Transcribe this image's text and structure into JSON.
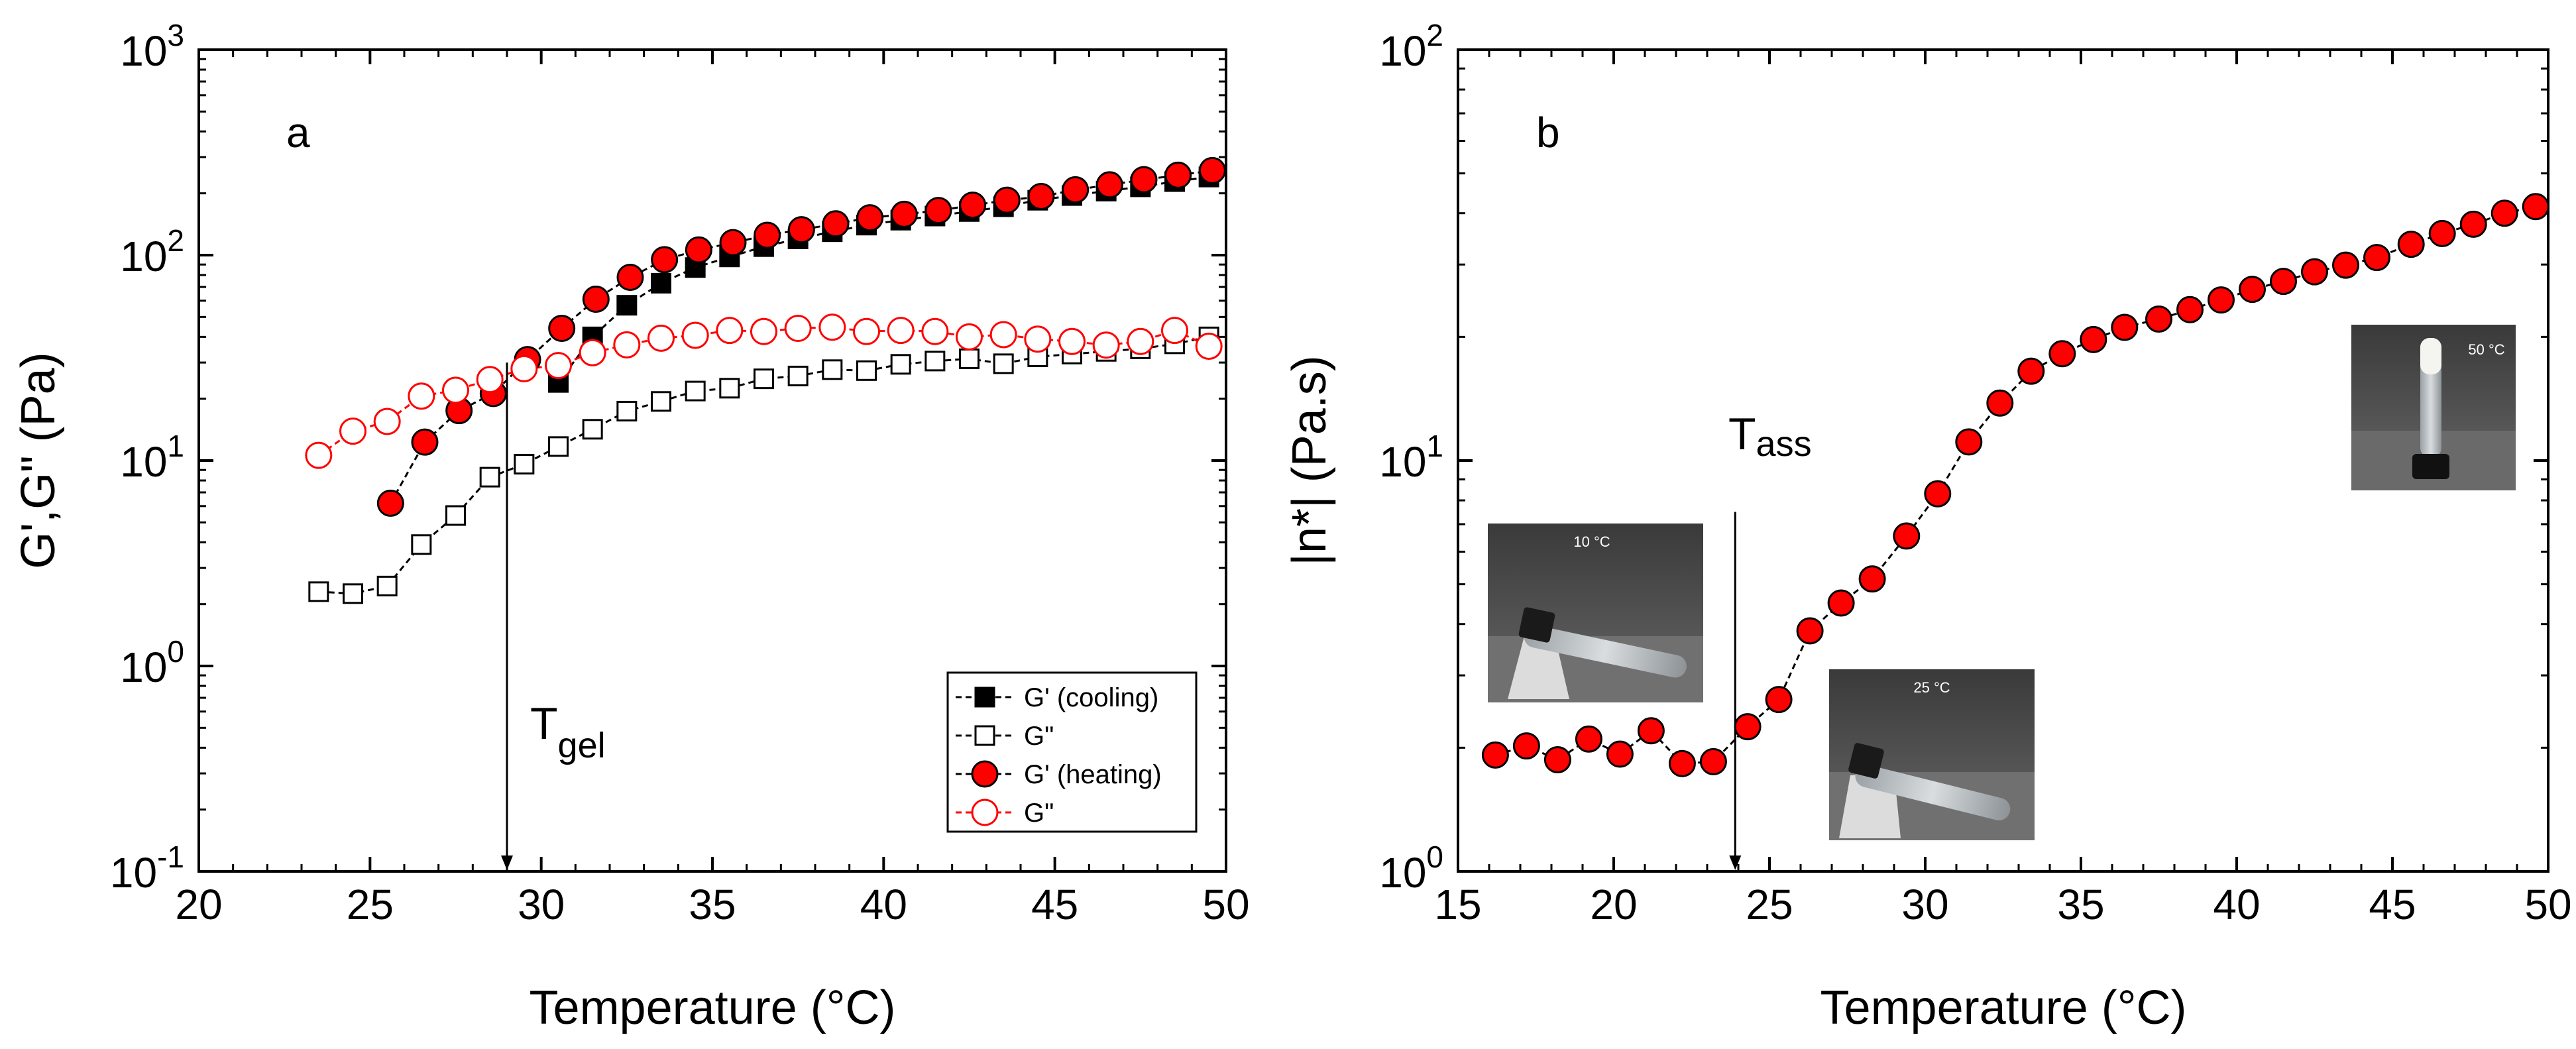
{
  "chart_data": [
    {
      "id": "a",
      "type": "scatter",
      "panel_letter": "a",
      "xlabel": "Temperature (°C)",
      "ylabel": "G',G\" (Pa)",
      "xlim": [
        20,
        50
      ],
      "ylim": [
        0.1,
        1000
      ],
      "yscale": "log",
      "x_ticks": [
        "20",
        "25",
        "30",
        "35",
        "40",
        "45",
        "50"
      ],
      "y_ticks": [
        {
          "base": "10",
          "exp": "-1"
        },
        {
          "base": "10",
          "exp": "0"
        },
        {
          "base": "10",
          "exp": "1"
        },
        {
          "base": "10",
          "exp": "2"
        },
        {
          "base": "10",
          "exp": "3"
        }
      ],
      "annotation": {
        "text": "T",
        "sub": "gel",
        "x": 29,
        "y_from": 30,
        "y_to": 0.1
      },
      "legend_position": "bottom-right",
      "series": [
        {
          "name": "G' (cooling)",
          "marker": "square",
          "filled": true,
          "color": "#000000",
          "line_color": "#000000",
          "x": [
            30.5,
            31.5,
            32.5,
            33.5,
            34.5,
            35.5,
            36.5,
            37.5,
            38.5,
            39.5,
            40.5,
            41.5,
            42.5,
            43.5,
            44.5,
            45.5,
            46.5,
            47.5,
            48.5,
            49.5
          ],
          "y": [
            24,
            40,
            57,
            73,
            87,
            98,
            110,
            120,
            130,
            140,
            148,
            155,
            163,
            172,
            185,
            195,
            205,
            215,
            228,
            240
          ]
        },
        {
          "name": "G\"",
          "marker": "square",
          "filled": false,
          "color": "#000000",
          "line_color": "#000000",
          "x": [
            23.5,
            24.5,
            25.5,
            26.5,
            27.5,
            28.5,
            29.5,
            30.5,
            31.5,
            32.5,
            33.5,
            34.5,
            35.5,
            36.5,
            37.5,
            38.5,
            39.5,
            40.5,
            41.5,
            42.5,
            43.5,
            44.5,
            45.5,
            46.5,
            47.5,
            48.5,
            49.5
          ],
          "y": [
            2.3,
            2.25,
            2.45,
            3.9,
            5.4,
            8.3,
            9.6,
            11.7,
            14.2,
            17.4,
            19.4,
            21.8,
            22.5,
            25,
            25.8,
            27.7,
            27.4,
            29.4,
            30.5,
            31.3,
            29.6,
            32,
            33,
            34,
            35,
            37,
            40
          ]
        },
        {
          "name": "G' (heating)",
          "marker": "circle",
          "filled": true,
          "color": "#ff0000",
          "line_color": "#000000",
          "x": [
            25.6,
            26.6,
            27.6,
            28.6,
            29.6,
            30.6,
            31.6,
            32.6,
            33.6,
            34.6,
            35.6,
            36.6,
            37.6,
            38.6,
            39.6,
            40.6,
            41.6,
            42.6,
            43.6,
            44.6,
            45.6,
            46.6,
            47.6,
            48.6,
            49.6
          ],
          "y": [
            6.2,
            12.3,
            17.5,
            21.2,
            31,
            44,
            61,
            78,
            95,
            106,
            115,
            125,
            133,
            142,
            152,
            158,
            165,
            175,
            185,
            193,
            208,
            220,
            233,
            245,
            258
          ]
        },
        {
          "name": "G\"",
          "marker": "circle",
          "filled": false,
          "color": "#ff0000",
          "line_color": "#ff0000",
          "x": [
            23.5,
            24.5,
            25.5,
            26.5,
            27.5,
            28.5,
            29.5,
            30.5,
            31.5,
            32.5,
            33.5,
            34.5,
            35.5,
            36.5,
            37.5,
            38.5,
            39.5,
            40.5,
            41.5,
            42.5,
            43.5,
            44.5,
            45.5,
            46.5,
            47.5,
            48.5,
            49.5
          ],
          "y": [
            10.6,
            13.9,
            15.5,
            20.6,
            22,
            24.8,
            28,
            29,
            33.5,
            36.6,
            39.4,
            40.7,
            43,
            42.5,
            44,
            44.6,
            42.5,
            43,
            42.5,
            40,
            41,
            39,
            38,
            36.5,
            38,
            43,
            36
          ]
        }
      ]
    },
    {
      "id": "b",
      "type": "scatter",
      "panel_letter": "b",
      "xlabel": "Temperature (°C)",
      "ylabel": "|n*| (Pa.s)",
      "xlim": [
        15,
        50
      ],
      "ylim": [
        1,
        100
      ],
      "yscale": "log",
      "x_ticks": [
        "15",
        "20",
        "25",
        "30",
        "35",
        "40",
        "45",
        "50"
      ],
      "y_ticks": [
        {
          "base": "10",
          "exp": "0"
        },
        {
          "base": "10",
          "exp": "1"
        },
        {
          "base": "10",
          "exp": "2"
        }
      ],
      "annotation": {
        "text": "T",
        "sub": "ass",
        "x": 23.9,
        "y_from": 7.5,
        "y_to": 1
      },
      "photos": [
        {
          "label": "10 °C",
          "anchor": "left-middle"
        },
        {
          "label": "25 °C",
          "anchor": "lower-middle"
        },
        {
          "label": "50 °C",
          "anchor": "upper-right"
        }
      ],
      "series": [
        {
          "name": "|n*|",
          "marker": "circle",
          "filled": true,
          "color": "#ff0000",
          "line_color": "#000000",
          "x": [
            16.2,
            17.2,
            18.2,
            19.2,
            20.2,
            21.2,
            22.2,
            23.2,
            24.3,
            25.3,
            26.3,
            27.3,
            28.3,
            29.4,
            30.4,
            31.4,
            32.4,
            33.4,
            34.4,
            35.4,
            36.4,
            37.5,
            38.5,
            39.5,
            40.5,
            41.5,
            42.5,
            43.5,
            44.5,
            45.6,
            46.6,
            47.6,
            48.6,
            49.6
          ],
          "y": [
            1.92,
            2.02,
            1.87,
            2.1,
            1.93,
            2.2,
            1.83,
            1.85,
            2.25,
            2.62,
            3.85,
            4.5,
            5.15,
            6.55,
            8.3,
            11.1,
            13.8,
            16.5,
            18.2,
            19.7,
            21.1,
            22.1,
            23.3,
            24.6,
            26.1,
            27.3,
            28.8,
            29.9,
            31.2,
            33.6,
            35.7,
            37.6,
            40,
            41.5
          ]
        }
      ]
    }
  ]
}
